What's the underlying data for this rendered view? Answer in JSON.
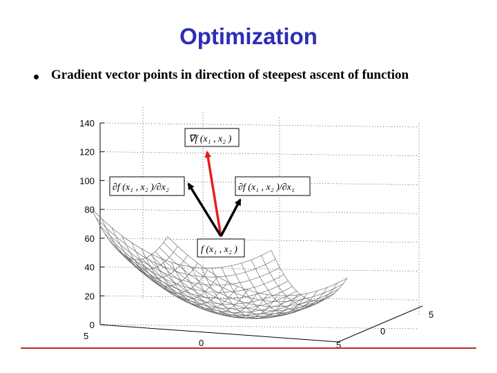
{
  "slide": {
    "title": "Optimization",
    "bullet": "Gradient vector points in direction of steepest ascent of function"
  },
  "chart_data": {
    "type": "surface",
    "z_ticks": [
      "140",
      "120",
      "100",
      "80",
      "60",
      "40",
      "20",
      "0"
    ],
    "x_ticks": [
      "5",
      "0",
      "5"
    ],
    "y_ticks": [
      "5",
      "0",
      "5"
    ],
    "zlim": [
      0,
      140
    ],
    "grid": true,
    "colors": {
      "surface_line": "#6b6b6b",
      "gradient_arrow": "#e0201c",
      "partial_arrow": "#000000"
    },
    "labels": {
      "gradient": "∇f (x₁ , x₂ )",
      "partial_x2": "∂f (x₁ , x₂ )/∂x₂",
      "partial_x1": "∂f (x₁ , x₂ )/∂x₁",
      "point": "f (x₁ , x₂ )"
    }
  }
}
